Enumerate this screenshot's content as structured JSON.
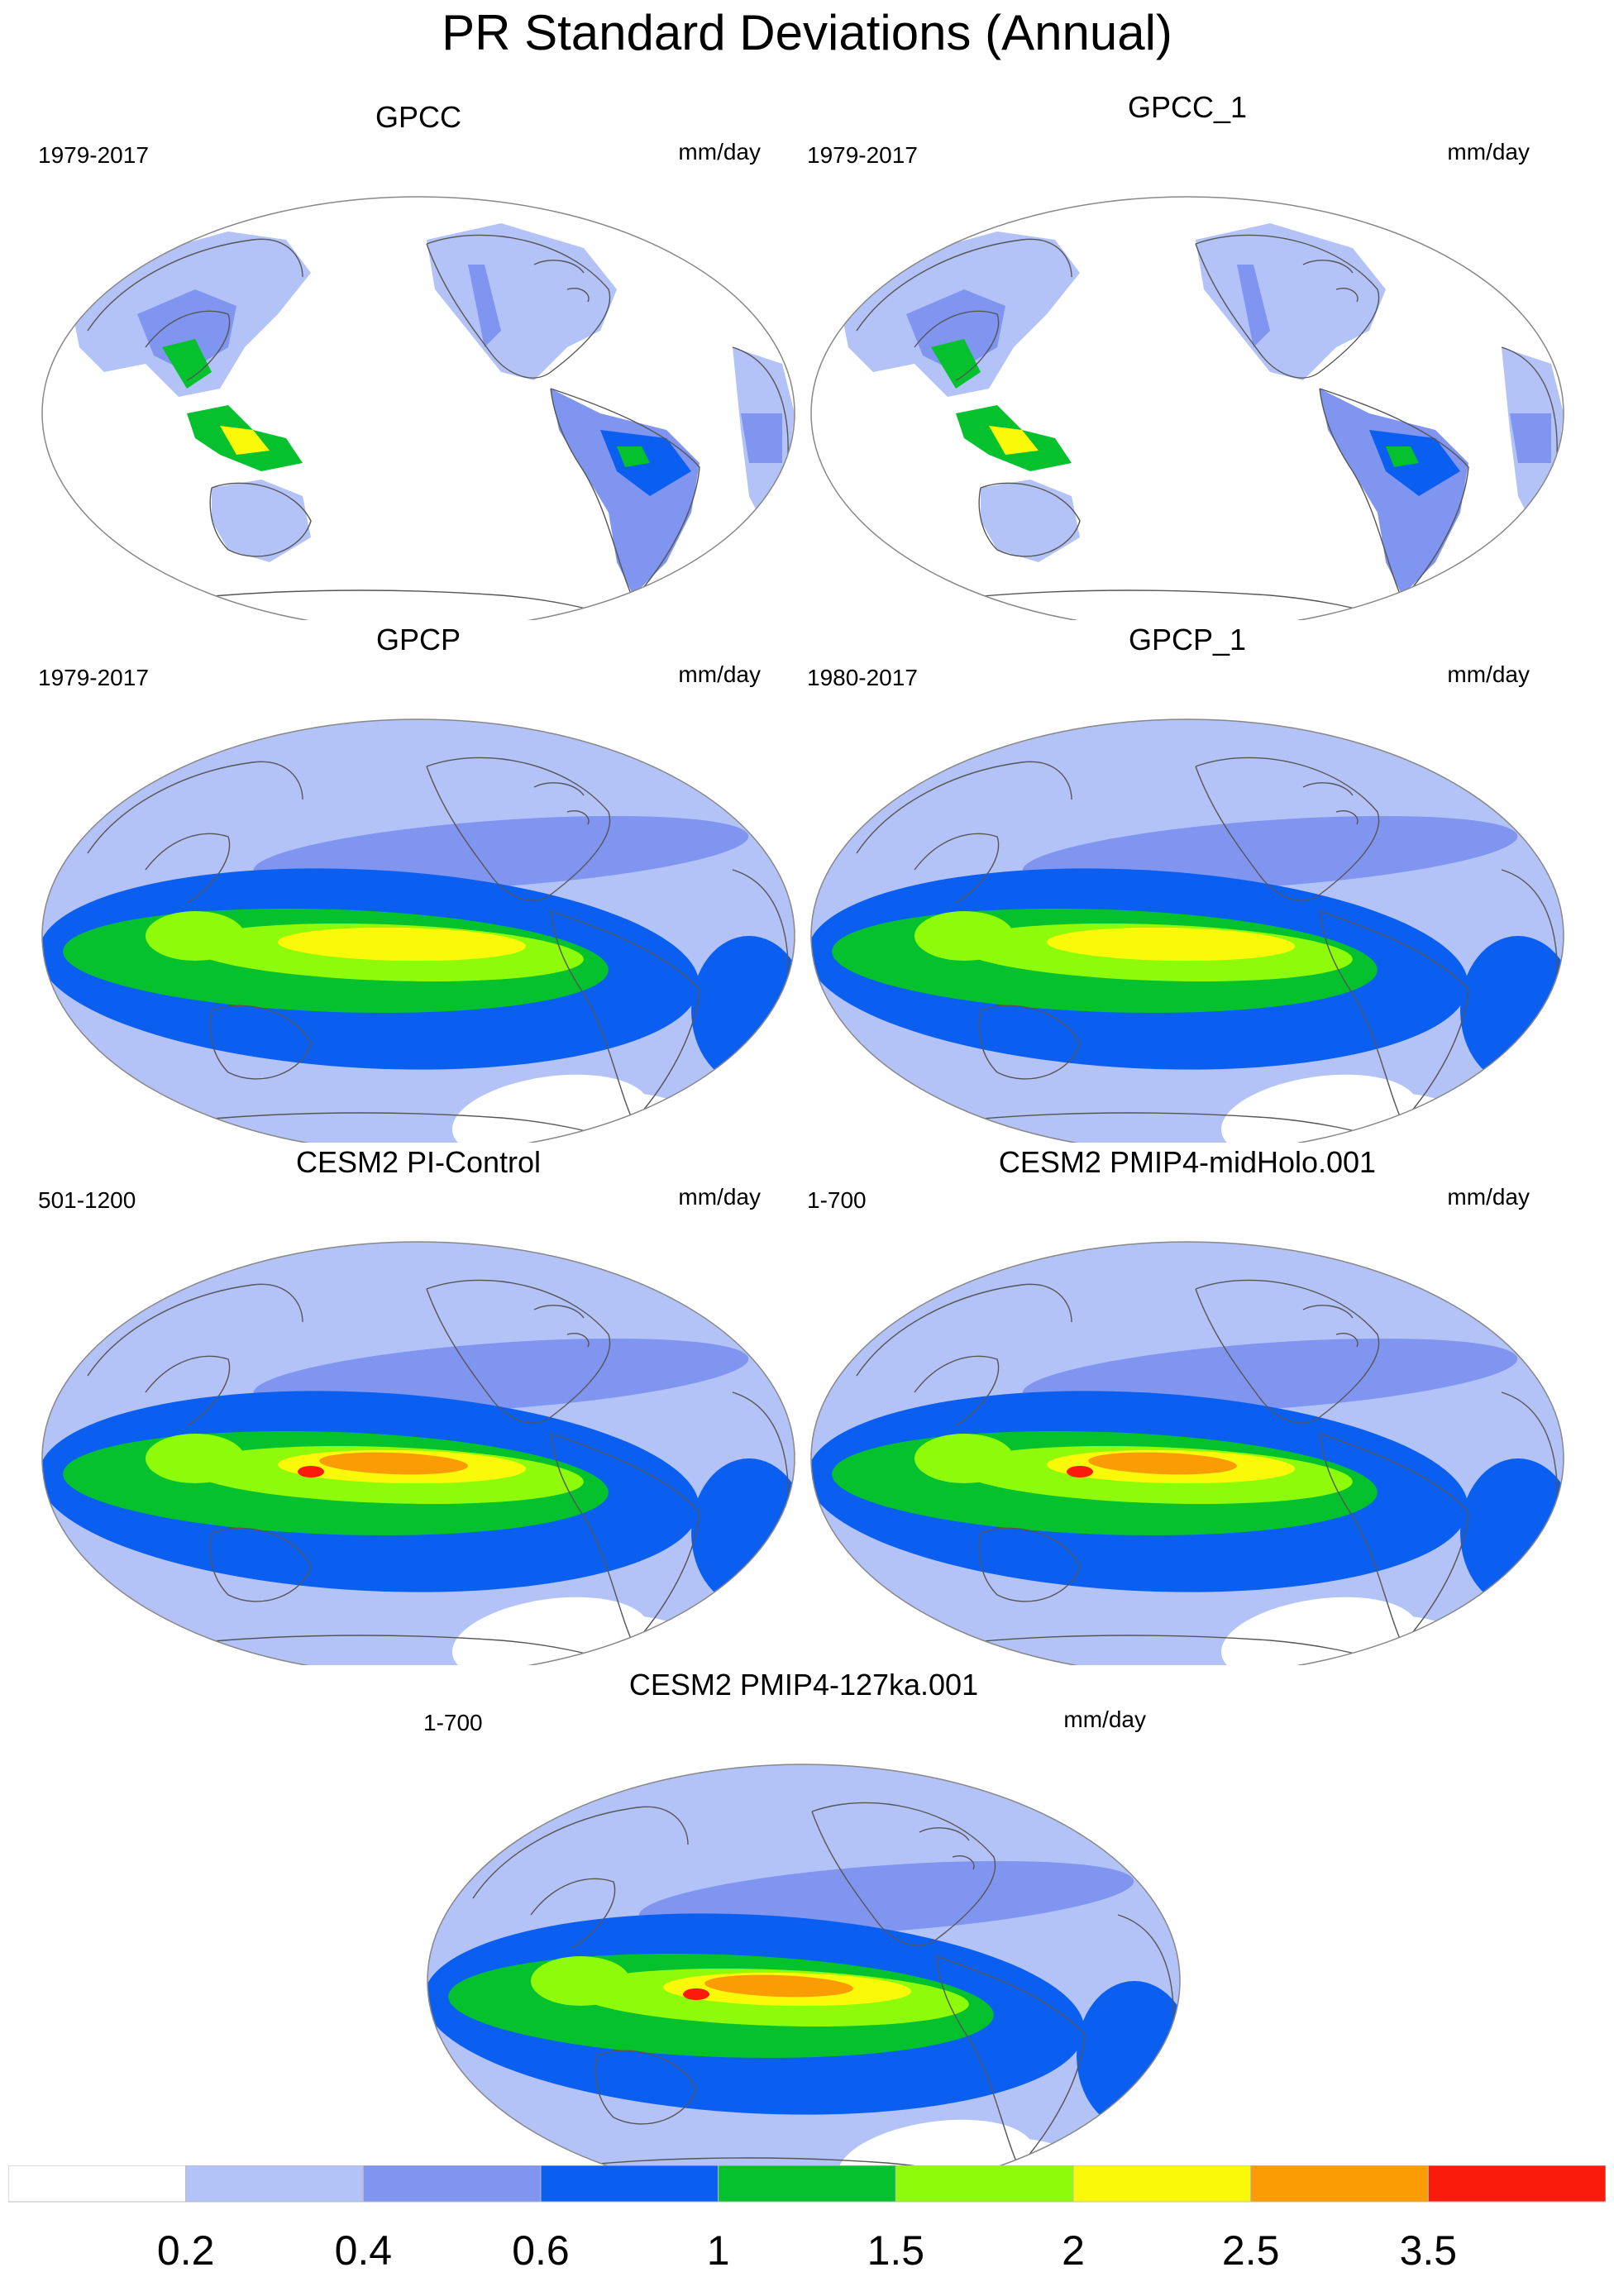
{
  "title": "PR Standard Deviations (Annual)",
  "colors": {
    "levels": [
      "#ffffff",
      "#b4c3f7",
      "#7f95f0",
      "#0a5ff0",
      "#05c12e",
      "#8dfb0a",
      "#fbf90a",
      "#fb9c05",
      "#fb1b0c"
    ]
  },
  "colorbar": {
    "labels": [
      "0.2",
      "0.4",
      "0.6",
      "1",
      "1.5",
      "2",
      "2.5",
      "3.5"
    ]
  },
  "panels": [
    {
      "id": "gpcc",
      "title": "GPCC",
      "period": "1979-2017",
      "units": "mm/day",
      "style": "land"
    },
    {
      "id": "gpcc1",
      "title": "GPCC_1",
      "period": "1979-2017",
      "units": "mm/day",
      "style": "land"
    },
    {
      "id": "gpcp",
      "title": "GPCP",
      "period": "1979-2017",
      "units": "mm/day",
      "style": "obs"
    },
    {
      "id": "gpcp1",
      "title": "GPCP_1",
      "period": "1980-2017",
      "units": "mm/day",
      "style": "obs"
    },
    {
      "id": "pictrl",
      "title": "CESM2 PI-Control",
      "period": "501-1200",
      "units": "mm/day",
      "style": "model"
    },
    {
      "id": "midholo",
      "title": "CESM2 PMIP4-midHolo.001",
      "period": "1-700",
      "units": "mm/day",
      "style": "model"
    },
    {
      "id": "lig127",
      "title": "CESM2 PMIP4-127ka.001",
      "period": "1-700",
      "units": "mm/day",
      "style": "model"
    }
  ]
}
